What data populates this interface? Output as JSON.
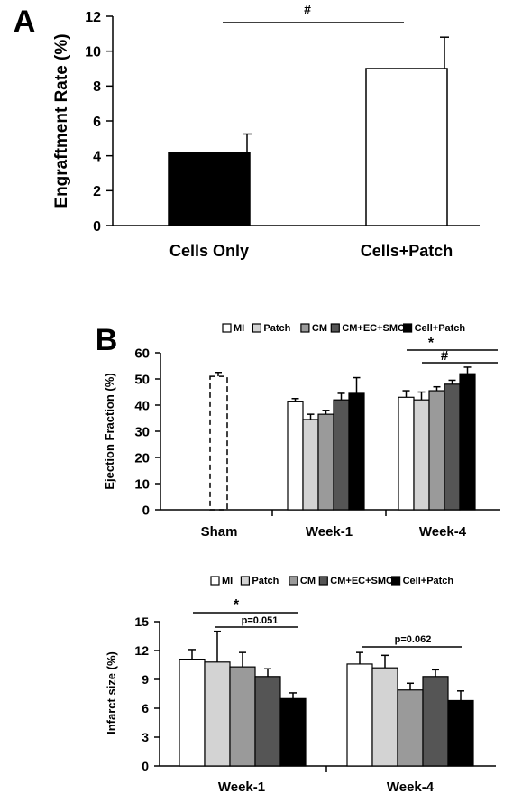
{
  "chart_data": [
    {
      "panel": "A",
      "type": "bar",
      "categories": [
        "Cells Only",
        "Cells+Patch"
      ],
      "values": [
        4.2,
        9.0
      ],
      "errors": [
        1.05,
        1.8
      ],
      "fills": [
        "#000000",
        "#ffffff"
      ],
      "ylabel": "Engraftment Rate (%)",
      "ylim": [
        0,
        12
      ],
      "yticks": [
        "0",
        "2",
        "4",
        "6",
        "8",
        "10",
        "12"
      ],
      "annotations": [
        {
          "text": "#"
        }
      ]
    },
    {
      "panel": "B",
      "type": "bar",
      "categories": [
        "Sham",
        "Week-1",
        "Week-4"
      ],
      "legend": [
        {
          "name": "MI",
          "color": "#ffffff"
        },
        {
          "name": "Patch",
          "color": "#d3d3d3"
        },
        {
          "name": "CM",
          "color": "#9a9a9a"
        },
        {
          "name": "CM+EC+SMC",
          "color": "#555555"
        },
        {
          "name": "Cell+Patch",
          "color": "#000000"
        }
      ],
      "sham": {
        "value": 51,
        "error": 1.5
      },
      "series": [
        {
          "name": "MI",
          "values": [
            null,
            41.5,
            43
          ],
          "errors": [
            null,
            1.0,
            2.5
          ]
        },
        {
          "name": "Patch",
          "values": [
            null,
            34.5,
            42
          ],
          "errors": [
            null,
            2.0,
            3.0
          ]
        },
        {
          "name": "CM",
          "values": [
            null,
            36.5,
            45.5
          ],
          "errors": [
            null,
            1.5,
            1.5
          ]
        },
        {
          "name": "CM+EC+SMC",
          "values": [
            null,
            42,
            48
          ],
          "errors": [
            null,
            2.5,
            1.5
          ]
        },
        {
          "name": "Cell+Patch",
          "values": [
            null,
            44.5,
            52
          ],
          "errors": [
            null,
            6.0,
            2.5
          ]
        }
      ],
      "ylabel": "Ejection Fraction (%)",
      "ylim": [
        0,
        60
      ],
      "yticks": [
        "0",
        "10",
        "20",
        "30",
        "40",
        "50",
        "60"
      ],
      "annotations": [
        {
          "text": "*"
        },
        {
          "text": "#"
        }
      ]
    },
    {
      "type": "bar",
      "categories": [
        "Week-1",
        "Week-4"
      ],
      "legend": [
        {
          "name": "MI",
          "color": "#ffffff"
        },
        {
          "name": "Patch",
          "color": "#d3d3d3"
        },
        {
          "name": "CM",
          "color": "#9a9a9a"
        },
        {
          "name": "CM+EC+SMC",
          "color": "#555555"
        },
        {
          "name": "Cell+Patch",
          "color": "#000000"
        }
      ],
      "series": [
        {
          "name": "MI",
          "values": [
            11.1,
            10.6
          ],
          "errors": [
            1.0,
            1.2
          ]
        },
        {
          "name": "Patch",
          "values": [
            10.8,
            10.2
          ],
          "errors": [
            3.2,
            1.3
          ]
        },
        {
          "name": "CM",
          "values": [
            10.3,
            7.9
          ],
          "errors": [
            1.5,
            0.7
          ]
        },
        {
          "name": "CM+EC+SMC",
          "values": [
            9.3,
            9.3
          ],
          "errors": [
            0.8,
            0.7
          ]
        },
        {
          "name": "Cell+Patch",
          "values": [
            7.0,
            6.8
          ],
          "errors": [
            0.6,
            1.0
          ]
        }
      ],
      "ylabel": "Infarct size (%)",
      "ylim": [
        0,
        15
      ],
      "yticks": [
        "0",
        "3",
        "6",
        "9",
        "12",
        "15"
      ],
      "annotations": [
        {
          "text": "*"
        },
        {
          "text": "p=0.051"
        },
        {
          "text": "p=0.062"
        }
      ]
    }
  ]
}
